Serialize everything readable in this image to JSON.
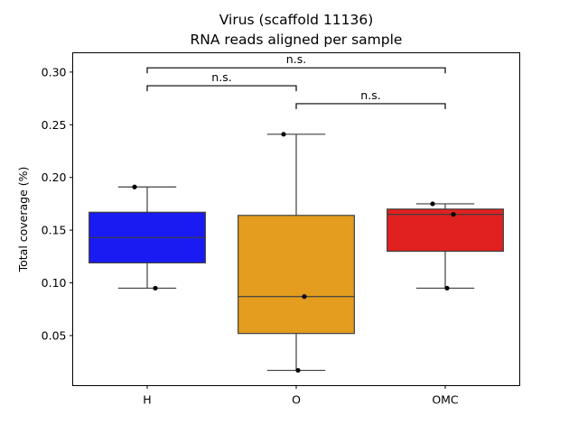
{
  "chart_data": {
    "type": "box",
    "title": "Virus (scaffold 11136)",
    "subtitle": "RNA reads aligned per sample",
    "xlabel": "",
    "ylabel": "Total coverage (%)",
    "ylim": [
      0.0025,
      0.3183
    ],
    "yticks": [
      0.05,
      0.1,
      0.15,
      0.2,
      0.25,
      0.3
    ],
    "ytick_labels": [
      "0.05",
      "0.10",
      "0.15",
      "0.20",
      "0.25",
      "0.30"
    ],
    "grid": false,
    "categories": [
      "H",
      "O",
      "OMC"
    ],
    "groups": [
      {
        "name": "H",
        "color": "#1a1af2",
        "whisker_low": 0.095,
        "q1": 0.119,
        "median": 0.143,
        "q3": 0.167,
        "whisker_high": 0.191,
        "points": [
          0.191,
          0.095
        ]
      },
      {
        "name": "O",
        "color": "#e49d1e",
        "whisker_low": 0.017,
        "q1": 0.052,
        "median": 0.087,
        "q3": 0.164,
        "whisker_high": 0.241,
        "points": [
          0.241,
          0.087,
          0.017
        ]
      },
      {
        "name": "OMC",
        "color": "#e12020",
        "whisker_low": 0.095,
        "q1": 0.13,
        "median": 0.165,
        "q3": 0.17,
        "whisker_high": 0.175,
        "points": [
          0.175,
          0.165,
          0.095
        ]
      }
    ],
    "annotations": [
      {
        "from": "H",
        "to": "OMC",
        "y": 0.304,
        "label": "n.s."
      },
      {
        "from": "H",
        "to": "O",
        "y": 0.287,
        "label": "n.s."
      },
      {
        "from": "O",
        "to": "OMC",
        "y": 0.27,
        "label": "n.s."
      }
    ]
  }
}
